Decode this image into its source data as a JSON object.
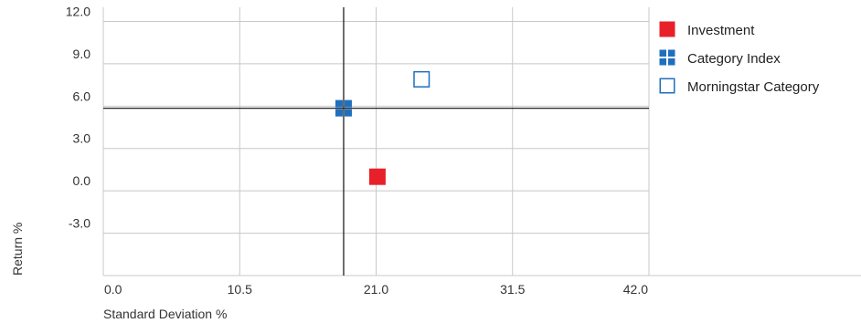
{
  "chart_data": {
    "type": "scatter",
    "xlabel": "Standard Deviation %",
    "ylabel": "Return %",
    "xlim": [
      0,
      42
    ],
    "ylim": [
      -6,
      13
    ],
    "x_ticks": [
      "0.0",
      "10.5",
      "21.0",
      "31.5",
      "42.0"
    ],
    "y_ticks": [
      "12.0",
      "9.0",
      "6.0",
      "3.0",
      "0.0",
      "-3.0"
    ],
    "x_tick_values": [
      0,
      10.5,
      21,
      31.5,
      42
    ],
    "y_tick_values": [
      12,
      9,
      6,
      3,
      0,
      -3
    ],
    "grid": true,
    "crosshair": {
      "x": 18.5,
      "y": 5.85
    },
    "legend_position": "right",
    "series": [
      {
        "name": "Investment",
        "x": 21.1,
        "y": 1.0,
        "color": "#e8202a",
        "marker": "filled-square"
      },
      {
        "name": "Category Index",
        "x": 18.5,
        "y": 5.85,
        "color": "#1f6fbf",
        "marker": "quad-square"
      },
      {
        "name": "Morningstar Category",
        "x": 24.5,
        "y": 7.9,
        "color": "#1f6fbf",
        "marker": "hollow-square"
      }
    ]
  },
  "colors": {
    "grid": "#c8c8c8",
    "crosshair": "#222222",
    "text": "#333333"
  }
}
